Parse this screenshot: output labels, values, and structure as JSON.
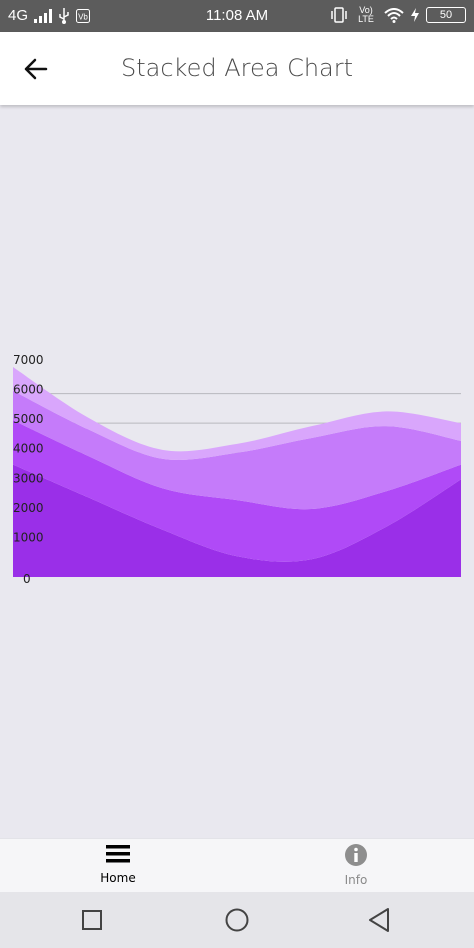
{
  "status_bar": {
    "network": "4G",
    "time": "11:08 AM",
    "lte": "Vo) LTE",
    "battery": "50"
  },
  "app_bar": {
    "title": "Stacked Area Chart"
  },
  "chart_data": {
    "type": "area",
    "stacked": true,
    "ylim": [
      0,
      7000
    ],
    "y_ticks": [
      "0",
      "1000",
      "2000",
      "3000",
      "4000",
      "5000",
      "6000",
      "7000"
    ],
    "x": [
      0,
      1,
      2,
      3,
      4,
      5,
      6
    ],
    "series": [
      {
        "values": [
          3800,
          2700,
          1600,
          700,
          600,
          1700,
          3300
        ],
        "color": "#9a2fe8"
      },
      {
        "values": [
          1500,
          1400,
          1400,
          1900,
          1700,
          1200,
          500
        ],
        "color": "#b04af7"
      },
      {
        "values": [
          1000,
          900,
          1000,
          1600,
          2400,
          2200,
          800
        ],
        "color": "#c57bfa"
      },
      {
        "values": [
          800,
          400,
          300,
          300,
          400,
          500,
          600
        ],
        "color": "#d9a6fc"
      }
    ],
    "grid": true,
    "legend": "none"
  },
  "bottom_nav": {
    "items": [
      {
        "label": "Home",
        "icon": "menu-icon",
        "active": true
      },
      {
        "label": "Info",
        "icon": "info-icon",
        "active": false
      }
    ]
  },
  "system_nav": {
    "buttons": [
      "recents-icon",
      "home-circle-icon",
      "back-triangle-icon"
    ]
  }
}
